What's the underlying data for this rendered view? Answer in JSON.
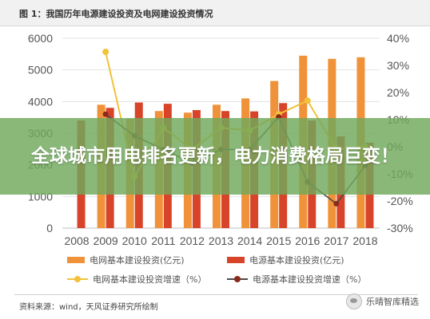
{
  "figure": {
    "title": "图 1：我国历年电源建设投资及电网建设投资情况"
  },
  "overlay": {
    "headline": "全球城市用电排名更新，电力消费格局巨变！"
  },
  "source": "资料来源：wind，天风证券研究所绘制",
  "watermark": "乐晴智库精选",
  "colors": {
    "grid_bar": "#f0923a",
    "source_bar": "#d8442a",
    "grid_line": "#f2c23a",
    "source_line": "#4a4a4a"
  },
  "chart_data": {
    "type": "bar",
    "categories": [
      "2008",
      "2009",
      "2010",
      "2011",
      "2012",
      "2013",
      "2014",
      "2015",
      "2016",
      "2017",
      "2018"
    ],
    "left_axis": {
      "ticks": [
        "0",
        "1000",
        "2000",
        "3000",
        "4000",
        "5000",
        "6000"
      ],
      "ylim": [
        0,
        6000
      ]
    },
    "right_axis": {
      "ticks": [
        "-30%",
        "-20%",
        "-10%",
        "0%",
        "10%",
        "20%",
        "30%",
        "40%"
      ],
      "ylim": [
        -30,
        40
      ]
    },
    "series": [
      {
        "name": "电网基本建设投资(亿元)",
        "kind": "bar",
        "axis": "left",
        "color": "#f0923a",
        "values": [
          null,
          3900,
          3450,
          3700,
          3650,
          3900,
          4100,
          4650,
          5450,
          5350,
          5400
        ]
      },
      {
        "name": "电源基本建设投资(亿元)",
        "kind": "bar",
        "axis": "left",
        "color": "#d8442a",
        "values": [
          3400,
          3800,
          3970,
          3930,
          3730,
          3700,
          3690,
          3950,
          3400,
          2900,
          2700
        ]
      },
      {
        "name": "电网基本建设投资增速（%）",
        "kind": "line",
        "axis": "right",
        "color": "#f2c23a",
        "values": [
          null,
          35,
          -11,
          7,
          -1,
          7,
          6,
          12,
          17,
          -1,
          0
        ]
      },
      {
        "name": "电源基本建设投资增速（%）",
        "kind": "line",
        "axis": "right",
        "color": "#4a4a4a",
        "values": [
          null,
          12,
          4,
          -1,
          -6,
          -1,
          -1,
          11,
          -13,
          -21,
          -7
        ]
      }
    ],
    "grid": true,
    "legend": "bottom"
  }
}
